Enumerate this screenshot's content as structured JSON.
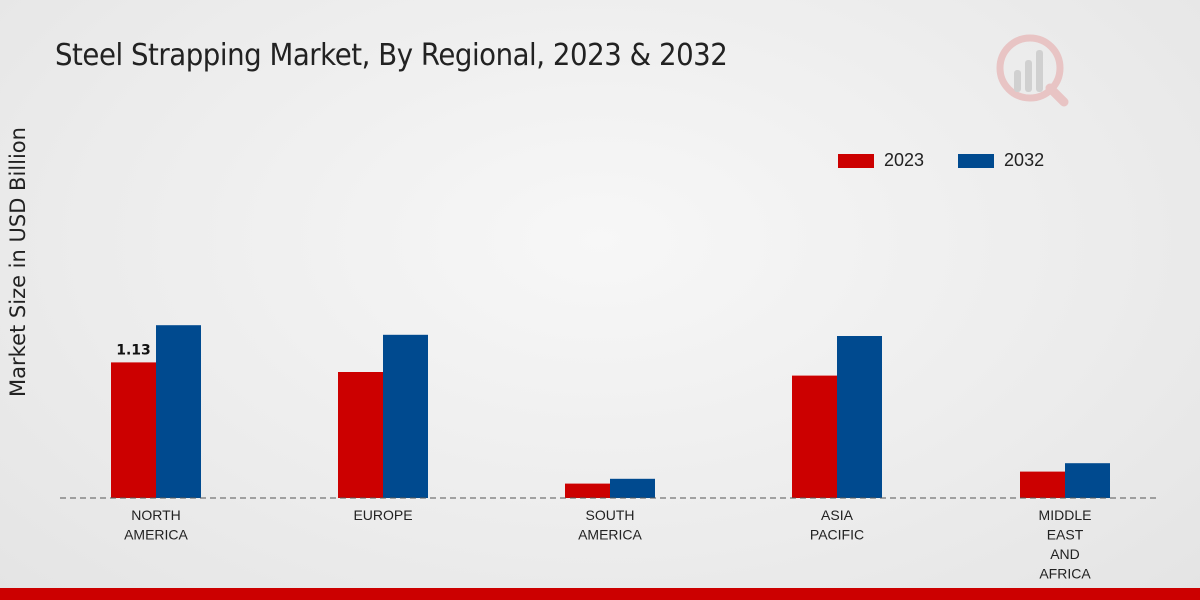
{
  "chart_data": {
    "type": "bar",
    "title": "Steel Strapping Market, By Regional, 2023 & 2032",
    "ylabel": "Market Size in USD Billion",
    "xlabel": "",
    "categories": [
      [
        "NORTH",
        "AMERICA"
      ],
      [
        "EUROPE"
      ],
      [
        "SOUTH",
        "AMERICA"
      ],
      [
        "ASIA",
        "PACIFIC"
      ],
      [
        "MIDDLE",
        "EAST",
        "AND",
        "AFRICA"
      ]
    ],
    "series": [
      {
        "name": "2023",
        "color": "#cc0000",
        "values": [
          1.13,
          1.05,
          0.12,
          1.02,
          0.22
        ]
      },
      {
        "name": "2032",
        "color": "#004a8f",
        "values": [
          1.44,
          1.36,
          0.16,
          1.35,
          0.29
        ]
      }
    ],
    "data_labels": [
      {
        "series": 0,
        "index": 0,
        "text": "1.13"
      }
    ],
    "ylim": [
      0,
      1.6
    ],
    "grid": false,
    "legend_position": "top-right"
  }
}
